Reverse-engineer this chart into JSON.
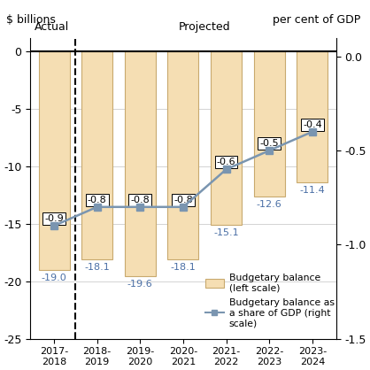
{
  "categories": [
    "2017-\n2018",
    "2018-\n2019",
    "2019-\n2020",
    "2020-\n2021",
    "2021-\n2022",
    "2022-\n2023",
    "2023-\n2024"
  ],
  "bar_values": [
    -19.0,
    -18.1,
    -19.6,
    -18.1,
    -15.1,
    -12.6,
    -11.4
  ],
  "gdp_values": [
    -0.9,
    -0.8,
    -0.8,
    -0.8,
    -0.6,
    -0.5,
    -0.4
  ],
  "bar_labels": [
    "-19.0",
    "-18.1",
    "-19.6",
    "-18.1",
    "-15.1",
    "-12.6",
    "-11.4"
  ],
  "gdp_labels": [
    "-0.9",
    "-0.8",
    "-0.8",
    "-0.8",
    "-0.6",
    "-0.5",
    "-0.4"
  ],
  "bar_color": "#F5DEB3",
  "bar_edgecolor": "#C8A96E",
  "line_color": "#7a95b0",
  "marker_color": "#7a95b0",
  "left_axis_label": "$ billions",
  "right_axis_label": "per cent of GDP",
  "ylim_left": [
    -25,
    1.2
  ],
  "ylim_right": [
    -1.5,
    0.1
  ],
  "yticks_left": [
    0,
    -5,
    -10,
    -15,
    -20,
    -25
  ],
  "yticks_right": [
    0.0,
    -0.5,
    -1.0,
    -1.5
  ],
  "actual_label": "Actual",
  "projected_label": "Projected",
  "legend_bar": "Budgetary balance\n(left scale)",
  "legend_line": "Budgetary balance as\na share of GDP (right\nscale)",
  "background_color": "#ffffff",
  "bar_label_color": "#4a6fa5",
  "grid_color": "#cccccc"
}
